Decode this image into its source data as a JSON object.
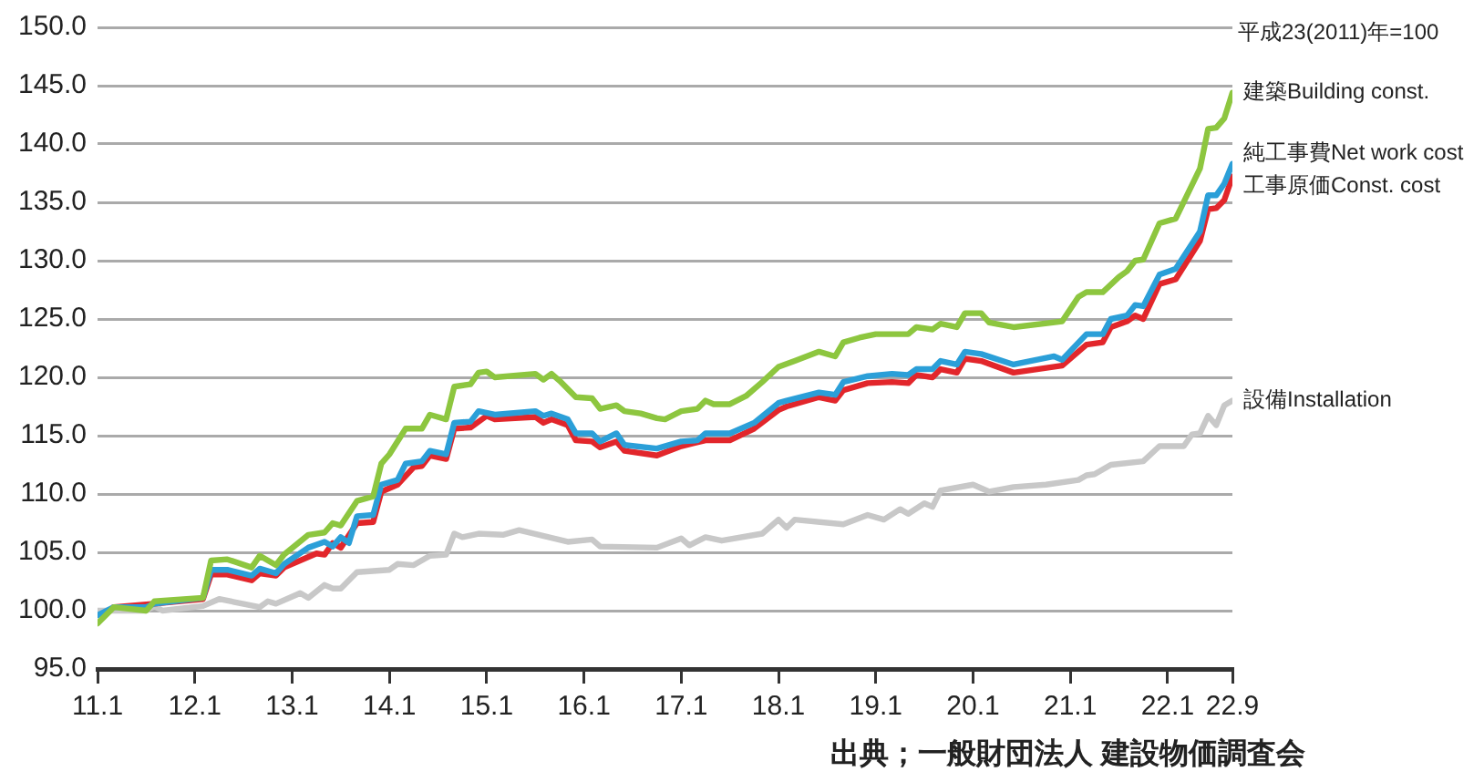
{
  "chart_data": {
    "type": "line",
    "annotations": [
      "平成23(2011)年=100",
      "出典；一般財団法人 建設物価調査会"
    ],
    "xlim": [
      "2011-01",
      "2022-09"
    ],
    "xticks": [
      {
        "value": "2011-01",
        "label": "11.1"
      },
      {
        "value": "2012-01",
        "label": "12.1"
      },
      {
        "value": "2013-01",
        "label": "13.1"
      },
      {
        "value": "2014-01",
        "label": "14.1"
      },
      {
        "value": "2015-01",
        "label": "15.1"
      },
      {
        "value": "2016-01",
        "label": "16.1"
      },
      {
        "value": "2017-01",
        "label": "17.1"
      },
      {
        "value": "2018-01",
        "label": "18.1"
      },
      {
        "value": "2019-01",
        "label": "19.1"
      },
      {
        "value": "2020-01",
        "label": "20.1"
      },
      {
        "value": "2021-01",
        "label": "21.1"
      },
      {
        "value": "2022-01",
        "label": "22.1"
      },
      {
        "value": "2022-09",
        "label": "22.9"
      }
    ],
    "ylim": [
      95,
      150
    ],
    "yticks": [
      {
        "value": 95,
        "label": "95.0"
      },
      {
        "value": 100,
        "label": "100.0"
      },
      {
        "value": 105,
        "label": "105.0"
      },
      {
        "value": 110,
        "label": "110.0"
      },
      {
        "value": 115,
        "label": "115.0"
      },
      {
        "value": 120,
        "label": "120.0"
      },
      {
        "value": 125,
        "label": "125.0"
      },
      {
        "value": 130,
        "label": "130.0"
      },
      {
        "value": 135,
        "label": "135.0"
      },
      {
        "value": 140,
        "label": "140.0"
      },
      {
        "value": 145,
        "label": "145.0"
      },
      {
        "value": 150,
        "label": "150.0"
      }
    ],
    "grid": "y",
    "legend": false,
    "marker": "none",
    "line_style": "solid",
    "series": [
      {
        "name": "建築Building const.",
        "color": "#8dc63f",
        "x": [
          "2011-01",
          "2011-03",
          "2011-07",
          "2011-08",
          "2012-02",
          "2012-03",
          "2012-05",
          "2012-08",
          "2012-09",
          "2012-11",
          "2012-12",
          "2013-03",
          "2013-05",
          "2013-06",
          "2013-07",
          "2013-09",
          "2013-11",
          "2013-12",
          "2014-01",
          "2014-03",
          "2014-05",
          "2014-06",
          "2014-08",
          "2014-09",
          "2014-11",
          "2014-12",
          "2015-01",
          "2015-02",
          "2015-07",
          "2015-08",
          "2015-09",
          "2015-10",
          "2015-12",
          "2016-02",
          "2016-03",
          "2016-05",
          "2016-06",
          "2016-08",
          "2016-10",
          "2016-11",
          "2017-01",
          "2017-03",
          "2017-04",
          "2017-05",
          "2017-07",
          "2017-09",
          "2017-11",
          "2018-01",
          "2018-03",
          "2018-06",
          "2018-08",
          "2018-09",
          "2018-11",
          "2019-01",
          "2019-05",
          "2019-06",
          "2019-08",
          "2019-09",
          "2019-11",
          "2019-12",
          "2020-02",
          "2020-03",
          "2020-06",
          "2020-12",
          "2021-02",
          "2021-03",
          "2021-05",
          "2021-07",
          "2021-08",
          "2021-09",
          "2021-10",
          "2021-12",
          "2022-02",
          "2022-05",
          "2022-06",
          "2022-07",
          "2022-08",
          "2022-09"
        ],
        "values": [
          98.9,
          100.3,
          100.0,
          100.8,
          101.1,
          104.3,
          104.4,
          103.7,
          104.7,
          103.9,
          104.8,
          106.5,
          106.7,
          107.5,
          107.3,
          109.4,
          109.8,
          112.6,
          113.4,
          115.6,
          115.6,
          116.8,
          116.4,
          119.2,
          119.4,
          120.4,
          120.5,
          120.0,
          120.3,
          119.8,
          120.3,
          119.7,
          118.3,
          118.2,
          117.3,
          117.6,
          117.1,
          116.9,
          116.5,
          116.4,
          117.1,
          117.3,
          118.0,
          117.7,
          117.7,
          118.4,
          119.6,
          120.9,
          121.4,
          122.2,
          121.8,
          123.0,
          123.4,
          123.7,
          123.7,
          124.3,
          124.1,
          124.6,
          124.3,
          125.5,
          125.5,
          124.7,
          124.3,
          124.8,
          126.9,
          127.3,
          127.3,
          128.6,
          129.1,
          130.0,
          130.1,
          133.2,
          133.6,
          137.9,
          141.3,
          141.4,
          142.2,
          144.4
        ]
      },
      {
        "name": "純工事費Net work cost",
        "color": "#2b9fd8",
        "x": [
          "2011-01",
          "2011-03",
          "2011-07",
          "2011-08",
          "2012-02",
          "2012-03",
          "2012-05",
          "2012-08",
          "2012-09",
          "2012-11",
          "2012-12",
          "2013-03",
          "2013-05",
          "2013-06",
          "2013-07",
          "2013-08",
          "2013-09",
          "2013-11",
          "2013-12",
          "2014-02",
          "2014-03",
          "2014-05",
          "2014-06",
          "2014-08",
          "2014-09",
          "2014-11",
          "2014-12",
          "2015-02",
          "2015-07",
          "2015-08",
          "2015-09",
          "2015-11",
          "2015-12",
          "2016-02",
          "2016-03",
          "2016-05",
          "2016-06",
          "2016-10",
          "2017-01",
          "2017-03",
          "2017-04",
          "2017-07",
          "2017-10",
          "2018-01",
          "2018-02",
          "2018-06",
          "2018-08",
          "2018-09",
          "2018-12",
          "2019-03",
          "2019-05",
          "2019-06",
          "2019-08",
          "2019-09",
          "2019-11",
          "2019-12",
          "2020-02",
          "2020-06",
          "2020-11",
          "2020-12",
          "2021-03",
          "2021-05",
          "2021-06",
          "2021-08",
          "2021-09",
          "2021-10",
          "2021-12",
          "2022-02",
          "2022-05",
          "2022-06",
          "2022-07",
          "2022-08",
          "2022-09"
        ],
        "values": [
          99.6,
          100.3,
          100.3,
          100.6,
          101.1,
          103.5,
          103.5,
          103.0,
          103.6,
          103.2,
          104.0,
          105.4,
          105.9,
          105.5,
          106.3,
          105.8,
          108.1,
          108.2,
          110.8,
          111.2,
          112.6,
          112.8,
          113.7,
          113.4,
          116.1,
          116.2,
          117.1,
          116.8,
          117.1,
          116.7,
          116.9,
          116.4,
          115.2,
          115.2,
          114.5,
          115.2,
          114.2,
          113.9,
          114.5,
          114.6,
          115.2,
          115.2,
          116.1,
          117.8,
          118.0,
          118.7,
          118.5,
          119.6,
          120.1,
          120.3,
          120.2,
          120.7,
          120.7,
          121.4,
          121.1,
          122.2,
          122.0,
          121.1,
          121.8,
          121.5,
          123.7,
          123.7,
          125.0,
          125.3,
          126.2,
          126.1,
          128.8,
          129.3,
          132.5,
          135.6,
          135.6,
          136.6,
          138.3
        ]
      },
      {
        "name": "工事原価Const. cost",
        "color": "#e2262b",
        "x": [
          "2011-03",
          "2011-08",
          "2012-02",
          "2012-03",
          "2012-05",
          "2012-08",
          "2012-09",
          "2012-11",
          "2012-12",
          "2013-04",
          "2013-05",
          "2013-06",
          "2013-07",
          "2013-09",
          "2013-11",
          "2013-12",
          "2014-02",
          "2014-04",
          "2014-05",
          "2014-06",
          "2014-08",
          "2014-09",
          "2014-11",
          "2015-01",
          "2015-02",
          "2015-07",
          "2015-08",
          "2015-09",
          "2015-11",
          "2015-12",
          "2016-02",
          "2016-03",
          "2016-05",
          "2016-06",
          "2016-10",
          "2017-01",
          "2017-04",
          "2017-07",
          "2017-10",
          "2018-01",
          "2018-02",
          "2018-06",
          "2018-08",
          "2018-09",
          "2018-12",
          "2019-03",
          "2019-05",
          "2019-06",
          "2019-08",
          "2019-09",
          "2019-11",
          "2019-12",
          "2020-02",
          "2020-06",
          "2020-12",
          "2021-03",
          "2021-05",
          "2021-06",
          "2021-08",
          "2021-09",
          "2021-10",
          "2021-12",
          "2022-02",
          "2022-05",
          "2022-06",
          "2022-07",
          "2022-08",
          "2022-09"
        ],
        "values": [
          100.3,
          100.6,
          101.0,
          103.1,
          103.1,
          102.6,
          103.2,
          103.0,
          103.7,
          104.9,
          104.8,
          105.8,
          105.4,
          107.5,
          107.6,
          110.2,
          110.8,
          112.3,
          112.4,
          113.3,
          113.0,
          115.6,
          115.7,
          116.7,
          116.4,
          116.6,
          116.1,
          116.4,
          115.9,
          114.6,
          114.5,
          114.0,
          114.5,
          113.7,
          113.3,
          114.1,
          114.6,
          114.6,
          115.6,
          117.2,
          117.5,
          118.3,
          118.0,
          118.9,
          119.5,
          119.6,
          119.5,
          120.2,
          120.0,
          120.7,
          120.4,
          121.6,
          121.4,
          120.4,
          121.0,
          122.8,
          123.0,
          124.3,
          124.8,
          125.3,
          125.0,
          128.0,
          128.4,
          131.7,
          134.4,
          134.5,
          135.2,
          137.2
        ]
      },
      {
        "name": "設備Installation",
        "color": "#c8c8c8",
        "x": [
          "2011-01",
          "2011-07",
          "2011-08",
          "2011-09",
          "2012-02",
          "2012-04",
          "2012-09",
          "2012-10",
          "2012-11",
          "2013-02",
          "2013-03",
          "2013-05",
          "2013-06",
          "2013-07",
          "2013-09",
          "2014-01",
          "2014-02",
          "2014-04",
          "2014-06",
          "2014-08",
          "2014-09",
          "2014-10",
          "2014-12",
          "2015-03",
          "2015-05",
          "2015-11",
          "2016-02",
          "2016-03",
          "2016-10",
          "2017-01",
          "2017-02",
          "2017-04",
          "2017-06",
          "2017-11",
          "2018-01",
          "2018-02",
          "2018-03",
          "2018-09",
          "2018-12",
          "2019-02",
          "2019-04",
          "2019-05",
          "2019-07",
          "2019-08",
          "2019-09",
          "2020-01",
          "2020-03",
          "2020-06",
          "2020-10",
          "2021-02",
          "2021-03",
          "2021-04",
          "2021-06",
          "2021-10",
          "2021-12",
          "2022-03",
          "2022-04",
          "2022-05",
          "2022-06",
          "2022-07",
          "2022-08",
          "2022-09"
        ],
        "values": [
          100.0,
          100.0,
          100.4,
          100.0,
          100.4,
          101.0,
          100.3,
          100.8,
          100.6,
          101.5,
          101.1,
          102.2,
          101.9,
          101.9,
          103.3,
          103.5,
          104.0,
          103.9,
          104.7,
          104.8,
          106.6,
          106.3,
          106.6,
          106.5,
          106.9,
          105.9,
          106.1,
          105.5,
          105.4,
          106.2,
          105.6,
          106.3,
          106.0,
          106.6,
          107.8,
          107.1,
          107.8,
          107.4,
          108.2,
          107.8,
          108.7,
          108.3,
          109.2,
          108.9,
          110.3,
          110.8,
          110.2,
          110.6,
          110.8,
          111.2,
          111.6,
          111.7,
          112.5,
          112.8,
          114.1,
          114.1,
          115.1,
          115.2,
          116.7,
          115.9,
          117.6,
          118.0
        ]
      }
    ]
  }
}
